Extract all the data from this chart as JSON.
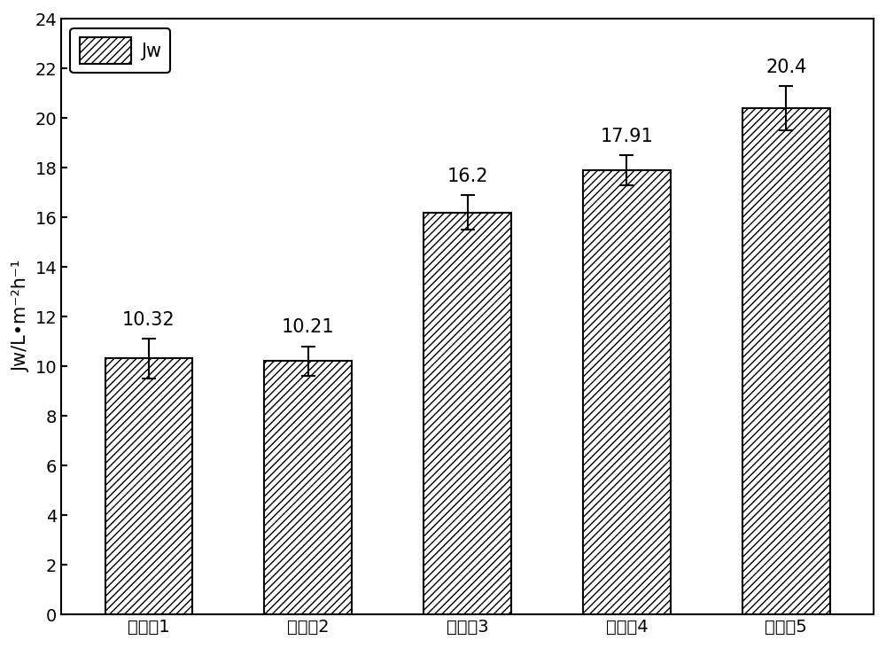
{
  "categories": [
    "对比例1",
    "对比例2",
    "实施例3",
    "实施例4",
    "实施例5"
  ],
  "values": [
    10.32,
    10.21,
    16.2,
    17.91,
    20.4
  ],
  "errors": [
    0.8,
    0.6,
    0.7,
    0.6,
    0.9
  ],
  "ylabel": "Jw/L•m⁻²h⁻¹",
  "ylim": [
    0,
    24
  ],
  "yticks": [
    0,
    2,
    4,
    6,
    8,
    10,
    12,
    14,
    16,
    18,
    20,
    22,
    24
  ],
  "bar_color": "#ffffff",
  "bar_edgecolor": "#000000",
  "hatch": "////",
  "legend_label": "Jw",
  "label_fontsize": 15,
  "tick_fontsize": 14,
  "value_fontsize": 15,
  "bar_width": 0.55,
  "figure_bg": "#ffffff",
  "axes_bg": "#ffffff",
  "error_offset": 0.4
}
